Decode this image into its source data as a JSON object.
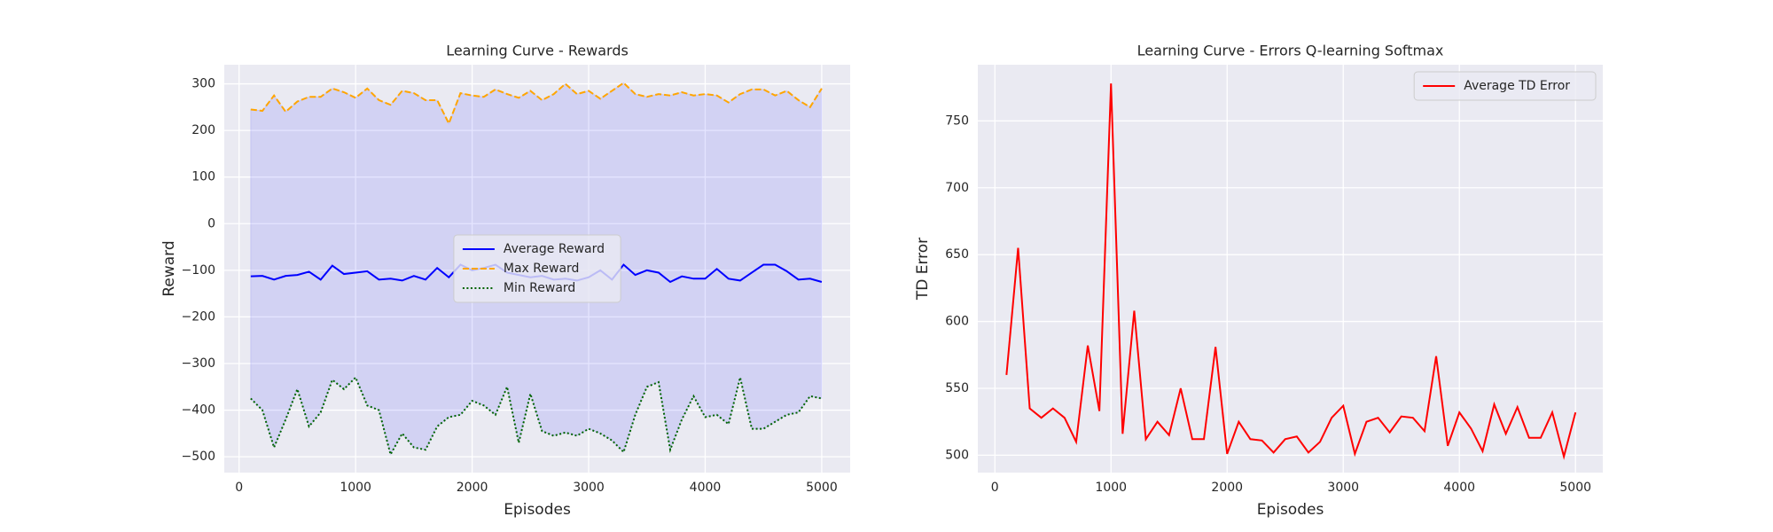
{
  "chart_data": [
    {
      "type": "line",
      "title": "Learning Curve - Rewards",
      "xlabel": "Episodes",
      "ylabel": "Reward",
      "x": [
        100,
        200,
        300,
        400,
        500,
        600,
        700,
        800,
        900,
        1000,
        1100,
        1200,
        1300,
        1400,
        1500,
        1600,
        1700,
        1800,
        1900,
        2000,
        2100,
        2200,
        2300,
        2400,
        2500,
        2600,
        2700,
        2800,
        2900,
        3000,
        3100,
        3200,
        3300,
        3400,
        3500,
        3600,
        3700,
        3800,
        3900,
        4000,
        4100,
        4200,
        4300,
        4400,
        4500,
        4600,
        4700,
        4800,
        4900,
        5000
      ],
      "series": [
        {
          "name": "Average Reward",
          "color": "#0000ff",
          "style": "solid",
          "values": [
            -113,
            -112,
            -120,
            -112,
            -110,
            -103,
            -120,
            -90,
            -108,
            -105,
            -102,
            -120,
            -118,
            -122,
            -112,
            -120,
            -95,
            -115,
            -88,
            -100,
            -95,
            -88,
            -105,
            -110,
            -115,
            -112,
            -120,
            -118,
            -122,
            -115,
            -100,
            -120,
            -88,
            -110,
            -100,
            -105,
            -125,
            -113,
            -118,
            -118,
            -97,
            -118,
            -122,
            -105,
            -88,
            -88,
            -102,
            -120,
            -118,
            -125
          ]
        },
        {
          "name": "Max Reward",
          "color": "#ffa500",
          "style": "dashed",
          "values": [
            245,
            242,
            275,
            240,
            262,
            272,
            272,
            290,
            282,
            270,
            290,
            265,
            255,
            285,
            280,
            265,
            265,
            215,
            280,
            275,
            272,
            288,
            278,
            270,
            285,
            265,
            278,
            300,
            278,
            285,
            268,
            285,
            302,
            278,
            272,
            278,
            275,
            282,
            275,
            278,
            275,
            260,
            278,
            288,
            288,
            275,
            285,
            265,
            250,
            290
          ]
        },
        {
          "name": "Min Reward",
          "color": "#006400",
          "style": "dotted",
          "values": [
            -375,
            -400,
            -480,
            -420,
            -355,
            -435,
            -405,
            -335,
            -355,
            -330,
            -390,
            -400,
            -495,
            -450,
            -480,
            -485,
            -435,
            -415,
            -410,
            -380,
            -390,
            -410,
            -350,
            -470,
            -365,
            -445,
            -455,
            -448,
            -455,
            -440,
            -450,
            -465,
            -490,
            -410,
            -350,
            -340,
            -485,
            -420,
            -370,
            -415,
            -410,
            -430,
            -330,
            -440,
            -440,
            -425,
            -410,
            -405,
            -370,
            -375
          ]
        }
      ],
      "fill_between": {
        "color": "#0000ff",
        "series": [
          1,
          2
        ]
      },
      "xlim": [
        -127,
        5244
      ],
      "xticks": [
        0,
        1000,
        2000,
        3000,
        4000,
        5000
      ],
      "ylim": [
        -534,
        341
      ],
      "yticks": [
        {
          "value": -500,
          "label": "−500"
        },
        {
          "value": -400,
          "label": "−400"
        },
        {
          "value": -300,
          "label": "−300"
        },
        {
          "value": -200,
          "label": "−200"
        },
        {
          "value": -100,
          "label": "−100"
        },
        0,
        100,
        200,
        300
      ],
      "grid": true,
      "legend": "center"
    },
    {
      "type": "line",
      "title": "Learning Curve - Errors Q-learning Softmax",
      "xlabel": "Episodes",
      "ylabel": "TD Error",
      "x": [
        100,
        200,
        300,
        400,
        500,
        600,
        700,
        800,
        900,
        1000,
        1100,
        1200,
        1300,
        1400,
        1500,
        1600,
        1700,
        1800,
        1900,
        2000,
        2100,
        2200,
        2300,
        2400,
        2500,
        2600,
        2700,
        2800,
        2900,
        3000,
        3100,
        3200,
        3300,
        3400,
        3500,
        3600,
        3700,
        3800,
        3900,
        4000,
        4100,
        4200,
        4300,
        4400,
        4500,
        4600,
        4700,
        4800,
        4900,
        5000
      ],
      "series": [
        {
          "name": "Average TD Error",
          "color": "#ff0000",
          "style": "solid",
          "values": [
            560,
            655,
            535,
            528,
            535,
            528,
            510,
            582,
            533,
            778,
            516,
            608,
            512,
            525,
            515,
            550,
            512,
            512,
            581,
            501,
            525,
            512,
            511,
            502,
            512,
            514,
            502,
            510,
            528,
            537,
            501,
            525,
            528,
            517,
            529,
            528,
            518,
            574,
            507,
            532,
            520,
            503,
            538,
            516,
            536,
            513,
            513,
            532,
            499,
            532
          ]
        }
      ],
      "xlim": [
        -147,
        5235
      ],
      "xticks": [
        0,
        1000,
        2000,
        3000,
        4000,
        5000
      ],
      "ylim": [
        487,
        792
      ],
      "yticks": [
        500,
        550,
        600,
        650,
        700,
        750
      ],
      "grid": true,
      "legend": "upper right"
    }
  ]
}
